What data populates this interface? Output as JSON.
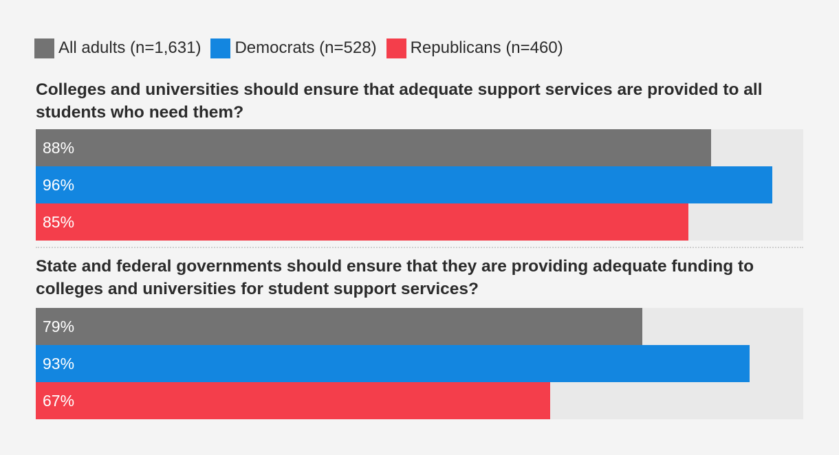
{
  "chart_data": {
    "type": "bar",
    "orientation": "horizontal",
    "xlim": [
      0,
      100
    ],
    "grid": false,
    "legend_position": "top-left",
    "series": [
      {
        "name": "All adults (n=1,631)",
        "color": "#737373"
      },
      {
        "name": "Democrats (n=528)",
        "color": "#1386e0"
      },
      {
        "name": "Republicans (n=460)",
        "color": "#f43e4b"
      }
    ],
    "groups": [
      {
        "question": "Colleges and universities should ensure that adequate support services are provided to all students who need them?",
        "values": [
          88,
          96,
          85
        ],
        "labels": [
          "88%",
          "96%",
          "85%"
        ]
      },
      {
        "question": "State and federal governments should ensure that they are providing adequate funding to colleges and universities for student support services?",
        "values": [
          79,
          93,
          67
        ],
        "labels": [
          "79%",
          "93%",
          "67%"
        ]
      }
    ]
  }
}
